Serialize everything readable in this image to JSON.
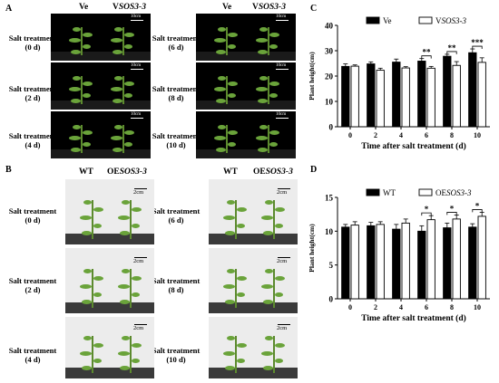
{
  "panels": {
    "a": "A",
    "b": "B",
    "c": "C",
    "d": "D"
  },
  "top_photos": {
    "col_left": "Ve",
    "col_right_prefix": "V",
    "col_right_gene": "SOS3-3",
    "scale": "10cm",
    "rows_left": [
      {
        "line1": "Salt treatment",
        "line2": "(0 d)"
      },
      {
        "line1": "Salt treatment",
        "line2": "(2 d)"
      },
      {
        "line1": "Salt treatment",
        "line2": "(4 d)"
      }
    ],
    "rows_right": [
      {
        "line1": "Salt treatment",
        "line2": "(6 d)"
      },
      {
        "line1": "Salt treatment",
        "line2": "(8 d)"
      },
      {
        "line1": "Salt treatment",
        "line2": "(10 d)"
      }
    ]
  },
  "bottom_photos": {
    "col_left": "WT",
    "col_right_prefix": "OE",
    "col_right_gene": "SOS3-3",
    "scale": "2cm",
    "rows_left": [
      {
        "line1": "Salt treatment",
        "line2": "(0 d)"
      },
      {
        "line1": "Salt treatment",
        "line2": "(2 d)"
      },
      {
        "line1": "Salt treatment",
        "line2": "(4 d)"
      }
    ],
    "rows_right": [
      {
        "line1": "Salt treatment",
        "line2": "(6 d)"
      },
      {
        "line1": "Salt treatment",
        "line2": "(8 d)"
      },
      {
        "line1": "Salt treatment",
        "line2": "(10 d)"
      }
    ]
  },
  "colors": {
    "filled": "#000000",
    "open": "#ffffff"
  },
  "chart_data": [
    {
      "type": "bar",
      "panel": "C",
      "categories": [
        "0",
        "2",
        "4",
        "6",
        "8",
        "10"
      ],
      "series": [
        {
          "name": "Ve",
          "values": [
            23.8,
            24.8,
            25.5,
            25.9,
            27.8,
            29.2
          ],
          "errors": [
            1.0,
            0.8,
            1.2,
            1.0,
            0.8,
            1.5
          ],
          "fill": "#000000"
        },
        {
          "name": "VSOS3-3",
          "values": [
            23.9,
            22.3,
            23.2,
            23.1,
            24.2,
            25.4
          ],
          "errors": [
            0.5,
            0.8,
            0.5,
            0.7,
            1.5,
            1.8
          ],
          "fill": "#ffffff"
        }
      ],
      "significance": [
        "",
        "",
        "",
        "**",
        "**",
        "***"
      ],
      "ylim": [
        0,
        40
      ],
      "yticks": [
        "0",
        "10",
        "20",
        "30",
        "40"
      ],
      "ylabel": "Plant height(cm)",
      "xlabel": "Time after salt treatment (d)",
      "legend_position": "top-left"
    },
    {
      "type": "bar",
      "panel": "D",
      "categories": [
        "0",
        "2",
        "4",
        "6",
        "8",
        "10"
      ],
      "series": [
        {
          "name": "WT",
          "values": [
            10.6,
            10.8,
            10.3,
            10.0,
            10.5,
            10.6
          ],
          "errors": [
            0.4,
            0.5,
            0.7,
            0.8,
            0.7,
            0.5
          ],
          "fill": "#000000"
        },
        {
          "name": "OESOS3-3",
          "values": [
            10.9,
            11.0,
            11.2,
            11.7,
            11.8,
            12.2
          ],
          "errors": [
            0.5,
            0.4,
            0.6,
            0.6,
            0.6,
            0.6
          ],
          "fill": "#ffffff"
        }
      ],
      "significance": [
        "",
        "",
        "",
        "*",
        "*",
        "*"
      ],
      "ylim": [
        0,
        15
      ],
      "yticks": [
        "0",
        "5",
        "10",
        "15"
      ],
      "ylabel": "Plant height(cm)",
      "xlabel": "Time after salt treatment (d)",
      "legend_position": "top-left"
    }
  ]
}
